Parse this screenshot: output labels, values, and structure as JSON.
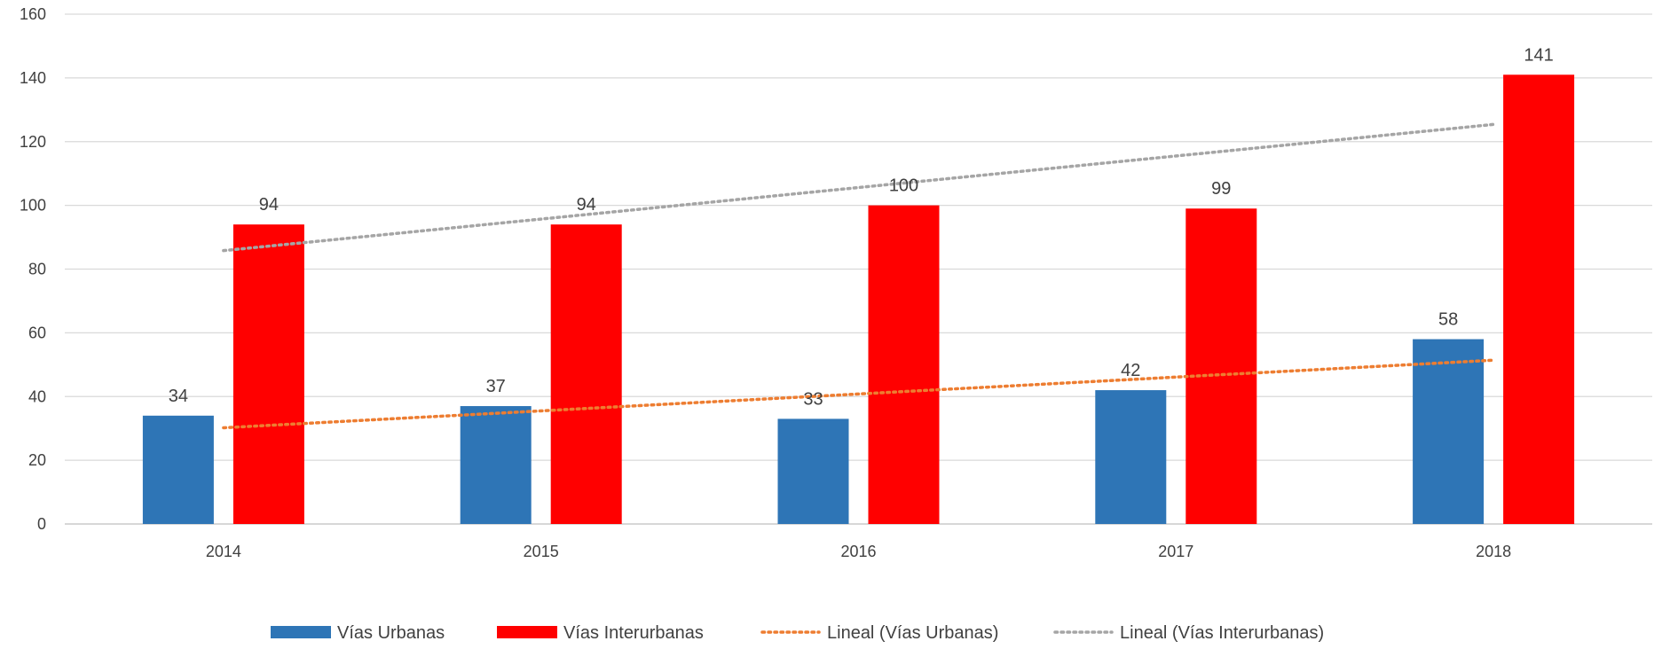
{
  "chart_data": {
    "type": "bar",
    "categories": [
      "2014",
      "2015",
      "2016",
      "2017",
      "2018"
    ],
    "series": [
      {
        "name": "Vías Urbanas",
        "values": [
          34,
          37,
          33,
          42,
          58
        ],
        "color": "#2E75B6"
      },
      {
        "name": "Vías Interurbanas",
        "values": [
          94,
          94,
          100,
          99,
          141
        ],
        "color": "#FF0000"
      }
    ],
    "trendlines": [
      {
        "name": "Lineal (Vías Urbanas)",
        "series": "Vías Urbanas",
        "type": "linear",
        "color": "#ED7D31",
        "style": "dotted"
      },
      {
        "name": "Lineal (Vías Interurbanas)",
        "series": "Vías Interurbanas",
        "type": "linear",
        "color": "#A5A5A5",
        "style": "dotted"
      }
    ],
    "ylim": [
      0,
      160
    ],
    "yticks": [
      0,
      20,
      40,
      60,
      80,
      100,
      120,
      140,
      160
    ],
    "grid": true,
    "legend_position": "bottom",
    "data_labels": true
  }
}
